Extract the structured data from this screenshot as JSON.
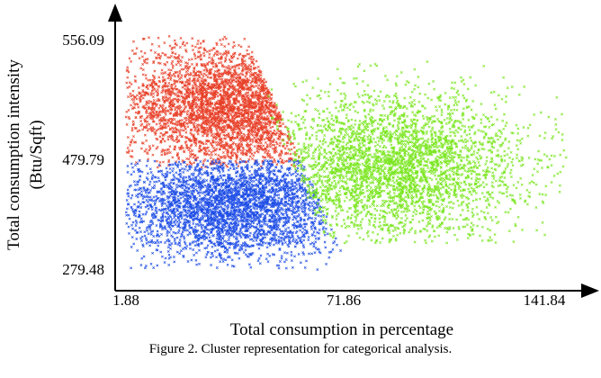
{
  "chart_data": {
    "type": "scatter",
    "title": "",
    "xlabel": "Total consumption in percentage",
    "ylabel_lines": [
      "Total consumption intensity",
      "(Btu/Sqft)"
    ],
    "x_ticks": [
      "1.88",
      "71.86",
      "141.84"
    ],
    "y_ticks": [
      "279.48",
      "479.79",
      "556.09"
    ],
    "xlim": [
      1.88,
      141.84
    ],
    "ylim": [
      279.48,
      556.09
    ],
    "grid": false,
    "legend": "none",
    "marker": "x",
    "series": [
      {
        "color": "#e8412a",
        "point_count": 3200,
        "x_range": [
          1.88,
          71.86
        ],
        "y_range": [
          479.79,
          556.09
        ]
      },
      {
        "color": "#1f4ee6",
        "point_count": 3200,
        "x_range": [
          1.88,
          71.86
        ],
        "y_range": [
          279.48,
          479.79
        ]
      },
      {
        "color": "#7ae61f",
        "point_count": 3400,
        "x_range": [
          71.86,
          141.84
        ],
        "y_range": [
          279.48,
          556.09
        ]
      }
    ]
  },
  "caption": "Figure 2. Cluster representation for categorical analysis."
}
